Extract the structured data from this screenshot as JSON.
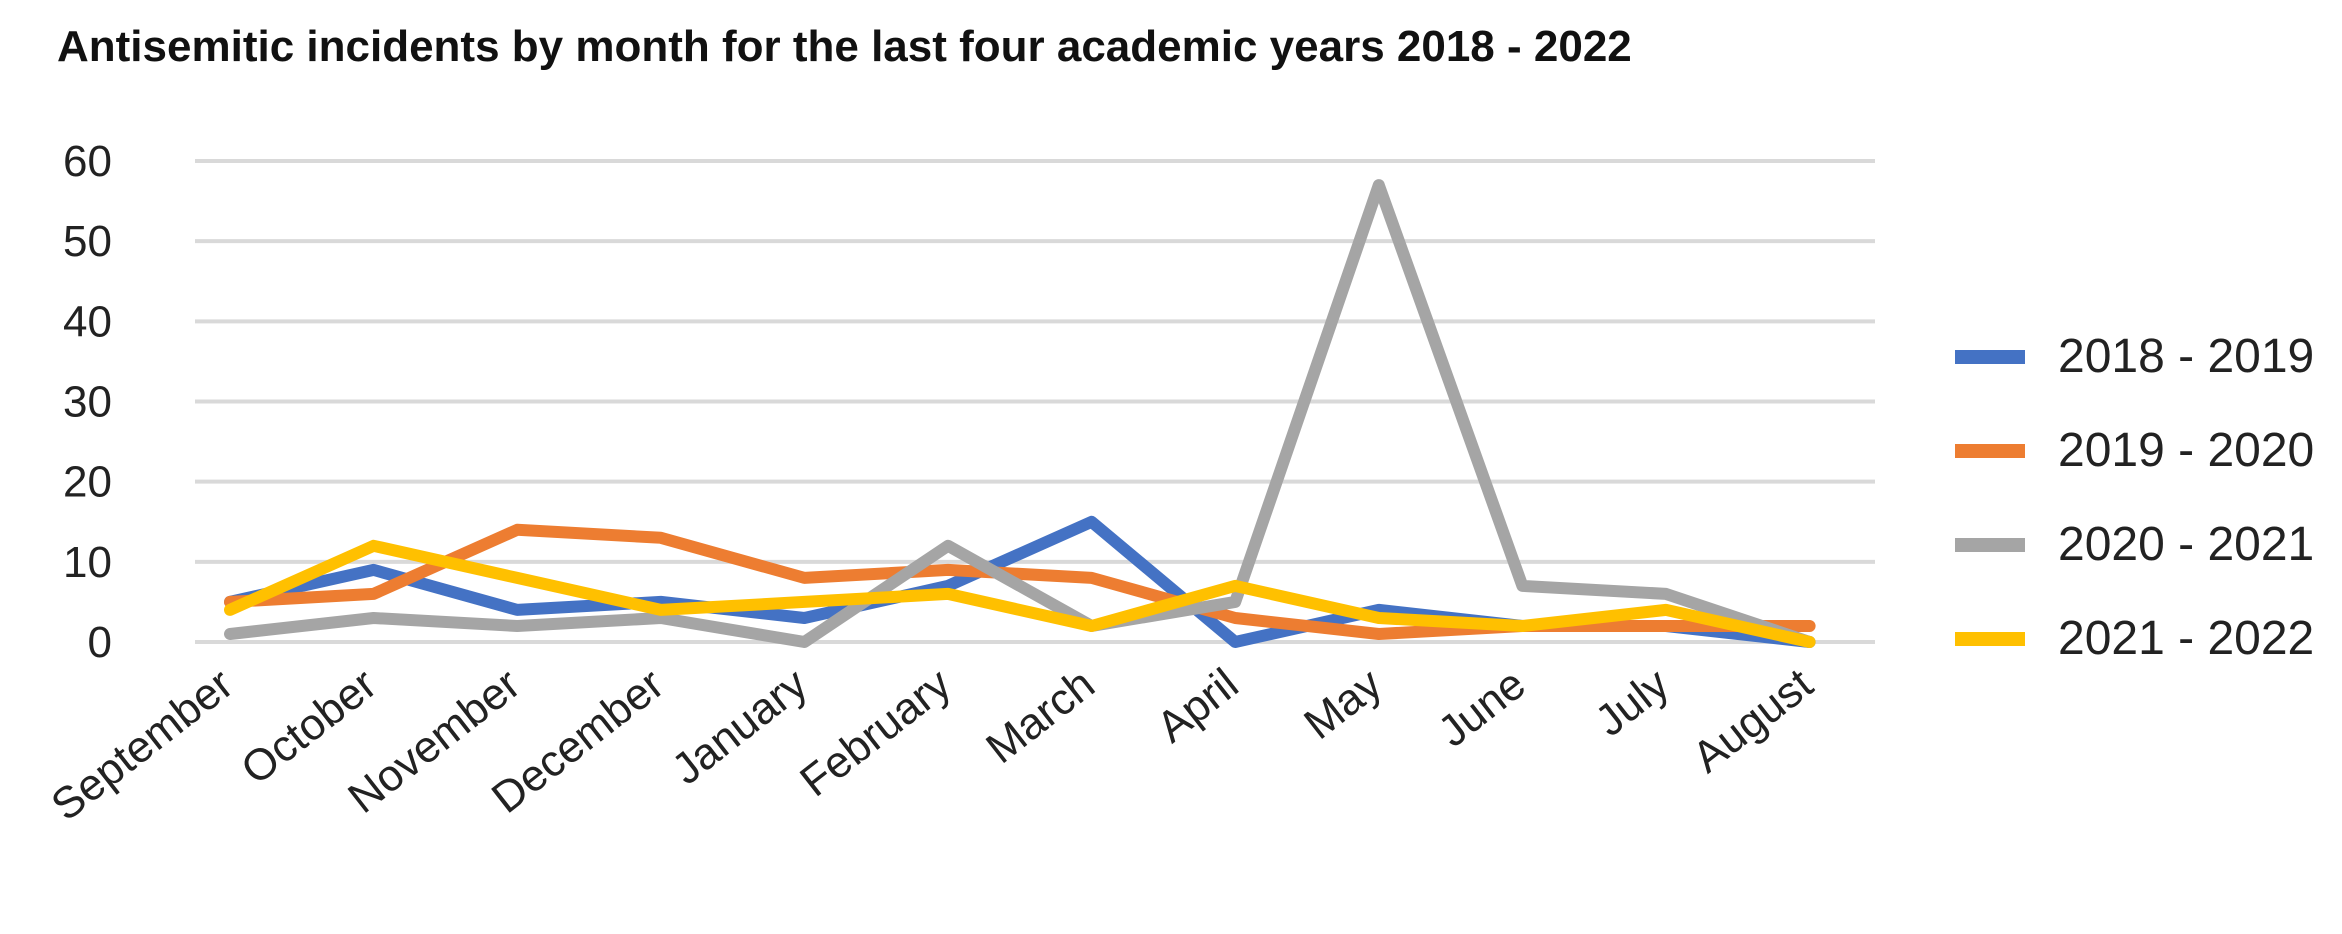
{
  "chart_data": {
    "type": "line",
    "title": "Antisemitic incidents by month for the last four academic years 2018 - 2022",
    "xlabel": "",
    "ylabel": "",
    "categories": [
      "September",
      "October",
      "November",
      "December",
      "January",
      "February",
      "March",
      "April",
      "May",
      "June",
      "July",
      "August"
    ],
    "ylim": [
      0,
      60
    ],
    "yticks": [
      0,
      10,
      20,
      30,
      40,
      50,
      60
    ],
    "grid": true,
    "legend": "right",
    "series": [
      {
        "name": "2018 - 2019",
        "color": "#4472C4",
        "values": [
          5,
          9,
          4,
          5,
          3,
          7,
          15,
          0,
          4,
          2,
          2,
          0
        ]
      },
      {
        "name": "2019 - 2020",
        "color": "#ED7D31",
        "values": [
          5,
          6,
          14,
          13,
          8,
          9,
          8,
          3,
          1,
          2,
          2,
          2
        ]
      },
      {
        "name": "2020 - 2021",
        "color": "#A5A5A5",
        "values": [
          1,
          3,
          2,
          3,
          0,
          12,
          2,
          5,
          57,
          7,
          6,
          0
        ]
      },
      {
        "name": "2021 - 2022",
        "color": "#FFC000",
        "values": [
          4,
          12,
          8,
          4,
          5,
          6,
          2,
          7,
          3,
          2,
          4,
          0
        ]
      }
    ]
  }
}
